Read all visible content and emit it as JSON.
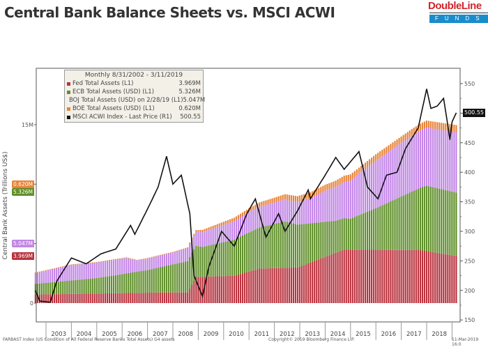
{
  "title": "Central Bank Balance Sheets vs. MSCI ACWI",
  "logo": {
    "name": "DoubleLine",
    "sub": "FUNDS"
  },
  "footer": {
    "source": "FARBAST Index (US Condition of All Federal Reserve Banks Total Assets) G4 assets",
    "copyright": "Copyright© 2019 Bloomberg Finance L.P.",
    "date": "11-Mar-2019 16:0"
  },
  "chart_data": {
    "type": "bar+line",
    "title": "Central Bank Balance Sheets vs. MSCI ACWI",
    "ylabel": "Central Bank Assets (Trillions US$)",
    "y_left": {
      "range": [
        0,
        16.5
      ],
      "ticks": [
        0,
        15
      ],
      "tick_labels": [
        "0",
        "15M"
      ]
    },
    "y_right": {
      "range": [
        140,
        560
      ],
      "ticks": [
        150,
        200,
        250,
        300,
        350,
        400,
        450,
        500,
        550
      ],
      "tick_labels": [
        "150",
        "200",
        "250",
        "300",
        "350",
        "400",
        "450",
        "500",
        "550"
      ]
    },
    "x_labels": [
      "2003",
      "2004",
      "2005",
      "2006",
      "2007",
      "2008",
      "2009",
      "2010",
      "2011",
      "2012",
      "2013",
      "2014",
      "2015",
      "2016",
      "2017",
      "2018"
    ],
    "legend": {
      "header": "Monthly 8/31/2002 - 3/11/2019",
      "placement": "top-left"
    },
    "series": [
      {
        "name": "Fed Total Assets (L1)",
        "last": "3.969M",
        "color": "#b8323e",
        "axis": "left",
        "stack": true,
        "points": [
          [
            "2002-08",
            0.72
          ],
          [
            "2007-06",
            0.89
          ],
          [
            "2008-08",
            0.9
          ],
          [
            "2008-12",
            2.2
          ],
          [
            "2010-06",
            2.3
          ],
          [
            "2011-06",
            2.9
          ],
          [
            "2012-12",
            3.0
          ],
          [
            "2014-10",
            4.5
          ],
          [
            "2017-10",
            4.45
          ],
          [
            "2019-03",
            3.97
          ]
        ]
      },
      {
        "name": "ECB Total Assets (USD) (L1)",
        "last": "5.326M",
        "color": "#5f8f2a",
        "axis": "left",
        "stack": true,
        "points": [
          [
            "2002-08",
            0.9
          ],
          [
            "2005-01",
            1.3
          ],
          [
            "2007-01",
            1.9
          ],
          [
            "2008-10",
            2.7
          ],
          [
            "2009-03",
            2.5
          ],
          [
            "2012-06",
            3.9
          ],
          [
            "2014-06",
            2.7
          ],
          [
            "2015-01",
            2.6
          ],
          [
            "2016-01",
            3.5
          ],
          [
            "2018-01",
            5.5
          ],
          [
            "2019-03",
            5.33
          ]
        ]
      },
      {
        "name": "BOJ Total Assets (USD) on 2/28/19 (L1)",
        "last": "5.047M",
        "color": "#c285e6",
        "axis": "left",
        "stack": true,
        "points": [
          [
            "2002-08",
            0.9
          ],
          [
            "2004-01",
            1.3
          ],
          [
            "2006-03",
            1.3
          ],
          [
            "2006-08",
            0.95
          ],
          [
            "2008-01",
            1.0
          ],
          [
            "2009-01",
            1.2
          ],
          [
            "2011-01",
            1.7
          ],
          [
            "2012-12",
            1.9
          ],
          [
            "2013-06",
            2.1
          ],
          [
            "2014-01",
            2.6
          ],
          [
            "2015-01",
            3.2
          ],
          [
            "2016-01",
            4.0
          ],
          [
            "2017-06",
            4.7
          ],
          [
            "2018-01",
            4.9
          ],
          [
            "2019-03",
            5.05
          ]
        ]
      },
      {
        "name": "BOE Total Assets (USD) (L1)",
        "last": "0.620M",
        "color": "#e8843a",
        "axis": "left",
        "stack": true,
        "points": [
          [
            "2002-08",
            0.05
          ],
          [
            "2008-08",
            0.05
          ],
          [
            "2009-03",
            0.2
          ],
          [
            "2012-01",
            0.4
          ],
          [
            "2013-01",
            0.5
          ],
          [
            "2017-01",
            0.55
          ],
          [
            "2019-03",
            0.62
          ]
        ]
      },
      {
        "name": "MSCI ACWI Index - Last Price (R1)",
        "last": "500.55",
        "color": "#111111",
        "axis": "right",
        "stack": false,
        "points": [
          [
            "2002-08",
            200
          ],
          [
            "2002-10",
            182
          ],
          [
            "2003-03",
            180
          ],
          [
            "2003-06",
            215
          ],
          [
            "2004-01",
            255
          ],
          [
            "2004-08",
            245
          ],
          [
            "2005-03",
            262
          ],
          [
            "2005-10",
            270
          ],
          [
            "2006-05",
            310
          ],
          [
            "2006-07",
            295
          ],
          [
            "2007-02",
            345
          ],
          [
            "2007-06",
            375
          ],
          [
            "2007-10",
            427
          ],
          [
            "2008-01",
            380
          ],
          [
            "2008-05",
            395
          ],
          [
            "2008-09",
            330
          ],
          [
            "2008-11",
            225
          ],
          [
            "2009-03",
            190
          ],
          [
            "2009-06",
            240
          ],
          [
            "2009-12",
            300
          ],
          [
            "2010-06",
            275
          ],
          [
            "2010-12",
            330
          ],
          [
            "2011-04",
            355
          ],
          [
            "2011-09",
            290
          ],
          [
            "2012-03",
            330
          ],
          [
            "2012-06",
            300
          ],
          [
            "2012-12",
            335
          ],
          [
            "2013-05",
            370
          ],
          [
            "2013-06",
            355
          ],
          [
            "2014-01",
            395
          ],
          [
            "2014-06",
            425
          ],
          [
            "2014-10",
            405
          ],
          [
            "2015-05",
            435
          ],
          [
            "2015-09",
            375
          ],
          [
            "2016-02",
            355
          ],
          [
            "2016-06",
            395
          ],
          [
            "2016-11",
            400
          ],
          [
            "2017-03",
            440
          ],
          [
            "2017-09",
            475
          ],
          [
            "2018-01",
            541
          ],
          [
            "2018-03",
            508
          ],
          [
            "2018-06",
            512
          ],
          [
            "2018-09",
            525
          ],
          [
            "2018-11",
            480
          ],
          [
            "2018-12",
            455
          ],
          [
            "2019-01",
            485
          ],
          [
            "2019-03",
            500.55
          ]
        ]
      }
    ]
  }
}
